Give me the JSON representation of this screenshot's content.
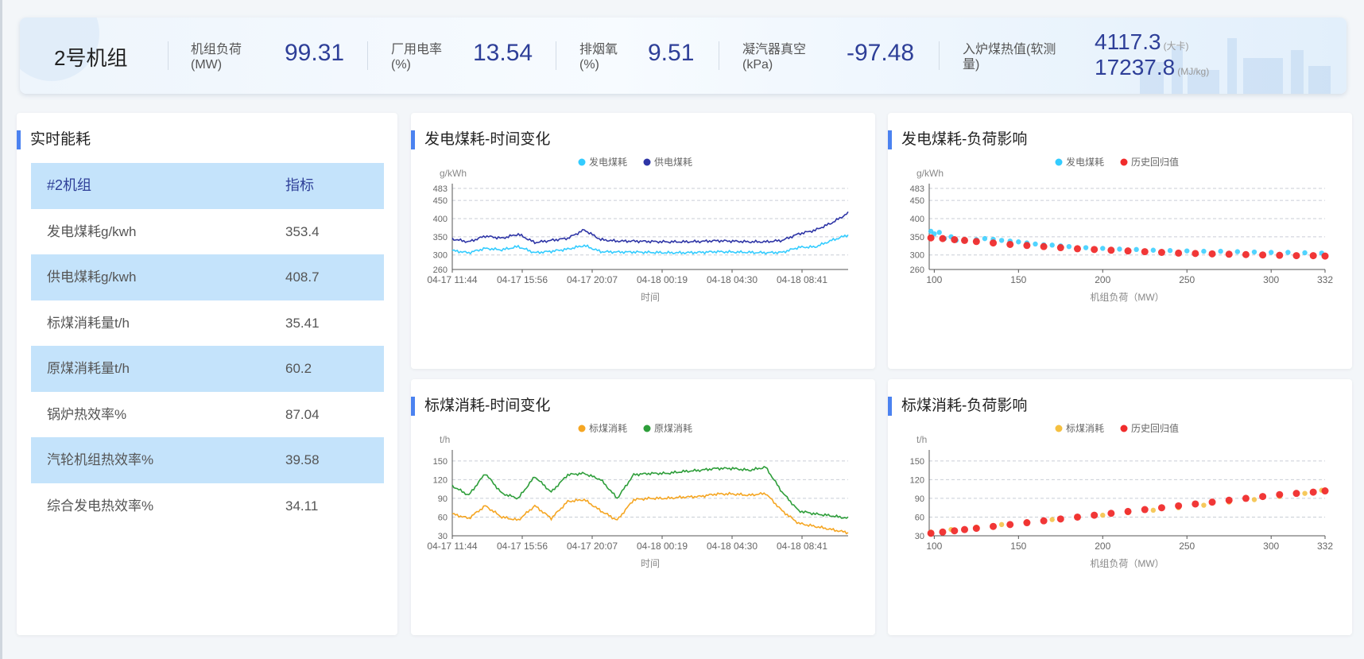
{
  "header": {
    "unit_name": "2号机组",
    "metrics": [
      {
        "label_line1": "机组负荷",
        "label_line2": "(MW)",
        "value": "99.31"
      },
      {
        "label_line1": "厂用电率",
        "label_line2": "(%)",
        "value": "13.54"
      },
      {
        "label_line1": "排烟氧",
        "label_line2": "(%)",
        "value": "9.51"
      },
      {
        "label_line1": "凝汽器真空",
        "label_line2": "(kPa)",
        "value": "-97.48"
      }
    ],
    "heat_value": {
      "label_line1": "入炉煤热值(软测",
      "label_line2": "量)",
      "value1": "4117.3",
      "unit1": "(大卡)",
      "value2": "17237.8",
      "unit2": "(MJ/kg)"
    }
  },
  "realtime": {
    "title": "实时能耗",
    "header": {
      "col1": "#2机组",
      "col2": "指标"
    },
    "rows": [
      {
        "name": "发电煤耗g/kwh",
        "value": "353.4"
      },
      {
        "name": "供电煤耗g/kwh",
        "value": "408.7"
      },
      {
        "name": "标煤消耗量t/h",
        "value": "35.41"
      },
      {
        "name": "原煤消耗量t/h",
        "value": "60.2"
      },
      {
        "name": "锅炉热效率%",
        "value": "87.04"
      },
      {
        "name": "汽轮机组热效率%",
        "value": "39.58"
      },
      {
        "name": "综合发电热效率%",
        "value": "34.11"
      }
    ]
  },
  "colors": {
    "title_bar": "#4b82f0",
    "light_blue": "#33ccff",
    "dark_blue": "#2e35a6",
    "orange": "#f5a623",
    "green": "#2e9e3a",
    "red": "#f02c2c",
    "value_text": "#2e3f98",
    "highlight_row": "#c4e3fb"
  },
  "chart_data": [
    {
      "id": "c1",
      "title": "发电煤耗-时间变化",
      "type": "line",
      "ylabel": "g/kWh",
      "xlabel": "时间",
      "ylim": [
        260,
        483
      ],
      "yticks": [
        260,
        300,
        350,
        400,
        450,
        483
      ],
      "xticks": [
        "04-17 11:44",
        "04-17 15:56",
        "04-17 20:07",
        "04-18 00:19",
        "04-18 04:30",
        "04-18 08:41"
      ],
      "x_points": 25,
      "grid": true,
      "legend": "top-center",
      "series": [
        {
          "name": "发电煤耗",
          "color": "#33ccff",
          "values": [
            312,
            306,
            318,
            314,
            323,
            306,
            310,
            316,
            326,
            309,
            308,
            308,
            307,
            306,
            306,
            307,
            309,
            308,
            307,
            306,
            307,
            321,
            322,
            340,
            355
          ]
        },
        {
          "name": "供电煤耗",
          "color": "#2e35a6",
          "values": [
            344,
            336,
            352,
            346,
            357,
            334,
            340,
            346,
            369,
            342,
            338,
            338,
            337,
            336,
            336,
            337,
            339,
            338,
            336,
            336,
            340,
            358,
            368,
            388,
            415
          ]
        }
      ]
    },
    {
      "id": "c2",
      "title": "发电煤耗-负荷影响",
      "type": "scatter",
      "ylabel": "g/kWh",
      "xlabel": "机组负荷（MW）",
      "xlim": [
        97,
        332
      ],
      "xticks": [
        100,
        150,
        200,
        250,
        300,
        332
      ],
      "ylim": [
        260,
        483
      ],
      "yticks": [
        260,
        300,
        350,
        400,
        450,
        483
      ],
      "grid": true,
      "legend": "top-center",
      "series": [
        {
          "name": "发电煤耗",
          "color": "#33ccff",
          "x": [
            98,
            100,
            103,
            106,
            110,
            113,
            118,
            125,
            130,
            135,
            140,
            145,
            150,
            155,
            160,
            165,
            170,
            175,
            180,
            190,
            200,
            210,
            220,
            230,
            240,
            250,
            260,
            270,
            280,
            290,
            300,
            310,
            320,
            330
          ],
          "y": [
            365,
            358,
            362,
            345,
            350,
            340,
            340,
            342,
            345,
            343,
            340,
            338,
            336,
            333,
            330,
            328,
            327,
            325,
            323,
            320,
            318,
            316,
            315,
            313,
            312,
            311,
            310,
            310,
            309,
            308,
            307,
            307,
            306,
            305
          ]
        },
        {
          "name": "历史回归值",
          "color": "#f02c2c",
          "x": [
            98,
            105,
            112,
            118,
            125,
            135,
            145,
            155,
            165,
            175,
            185,
            195,
            205,
            215,
            225,
            235,
            245,
            255,
            265,
            275,
            285,
            295,
            305,
            315,
            325,
            332
          ],
          "y": [
            347,
            345,
            342,
            340,
            337,
            333,
            329,
            326,
            323,
            320,
            317,
            315,
            313,
            311,
            309,
            307,
            305,
            304,
            303,
            302,
            301,
            300,
            299,
            298,
            298,
            297
          ]
        }
      ]
    },
    {
      "id": "c3",
      "title": "标煤消耗-时间变化",
      "type": "line",
      "ylabel": "t/h",
      "xlabel": "时间",
      "ylim": [
        30,
        160
      ],
      "yticks": [
        30,
        60,
        90,
        120,
        150
      ],
      "xticks": [
        "04-17 11:44",
        "04-17 15:56",
        "04-17 20:07",
        "04-18 00:19",
        "04-18 04:30",
        "04-18 08:41"
      ],
      "x_points": 25,
      "grid": true,
      "legend": "top-center",
      "series": [
        {
          "name": "标煤消耗",
          "color": "#f5a623",
          "values": [
            65,
            58,
            78,
            60,
            55,
            78,
            58,
            85,
            88,
            70,
            55,
            88,
            90,
            90,
            92,
            93,
            97,
            97,
            95,
            98,
            70,
            50,
            45,
            40,
            35
          ]
        },
        {
          "name": "原煤消耗",
          "color": "#2e9e3a",
          "values": [
            110,
            95,
            130,
            98,
            90,
            125,
            100,
            128,
            130,
            120,
            90,
            128,
            130,
            130,
            133,
            135,
            138,
            138,
            135,
            140,
            100,
            70,
            65,
            62,
            58
          ]
        }
      ]
    },
    {
      "id": "c4",
      "title": "标煤消耗-负荷影响",
      "type": "scatter",
      "ylabel": "t/h",
      "xlabel": "机组负荷（MW）",
      "xlim": [
        97,
        332
      ],
      "xticks": [
        100,
        150,
        200,
        250,
        300,
        332
      ],
      "ylim": [
        30,
        160
      ],
      "yticks": [
        30,
        60,
        90,
        120,
        150
      ],
      "grid": true,
      "legend": "top-center",
      "series": [
        {
          "name": "标煤消耗",
          "color": "#f5c040",
          "x": [
            98,
            110,
            125,
            140,
            155,
            170,
            185,
            200,
            215,
            230,
            245,
            260,
            275,
            290,
            305,
            320,
            330
          ],
          "y": [
            36,
            40,
            44,
            48,
            52,
            56,
            60,
            63,
            67,
            71,
            75,
            79,
            84,
            88,
            93,
            98,
            103
          ]
        },
        {
          "name": "历史回归值",
          "color": "#f02c2c",
          "x": [
            98,
            105,
            112,
            118,
            125,
            135,
            145,
            155,
            165,
            175,
            185,
            195,
            205,
            215,
            225,
            235,
            245,
            255,
            265,
            275,
            285,
            295,
            305,
            315,
            325,
            332
          ],
          "y": [
            34,
            36,
            38,
            40,
            42,
            45,
            48,
            51,
            54,
            57,
            60,
            63,
            66,
            69,
            72,
            75,
            78,
            81,
            84,
            87,
            90,
            93,
            96,
            98,
            100,
            102
          ]
        }
      ]
    }
  ]
}
